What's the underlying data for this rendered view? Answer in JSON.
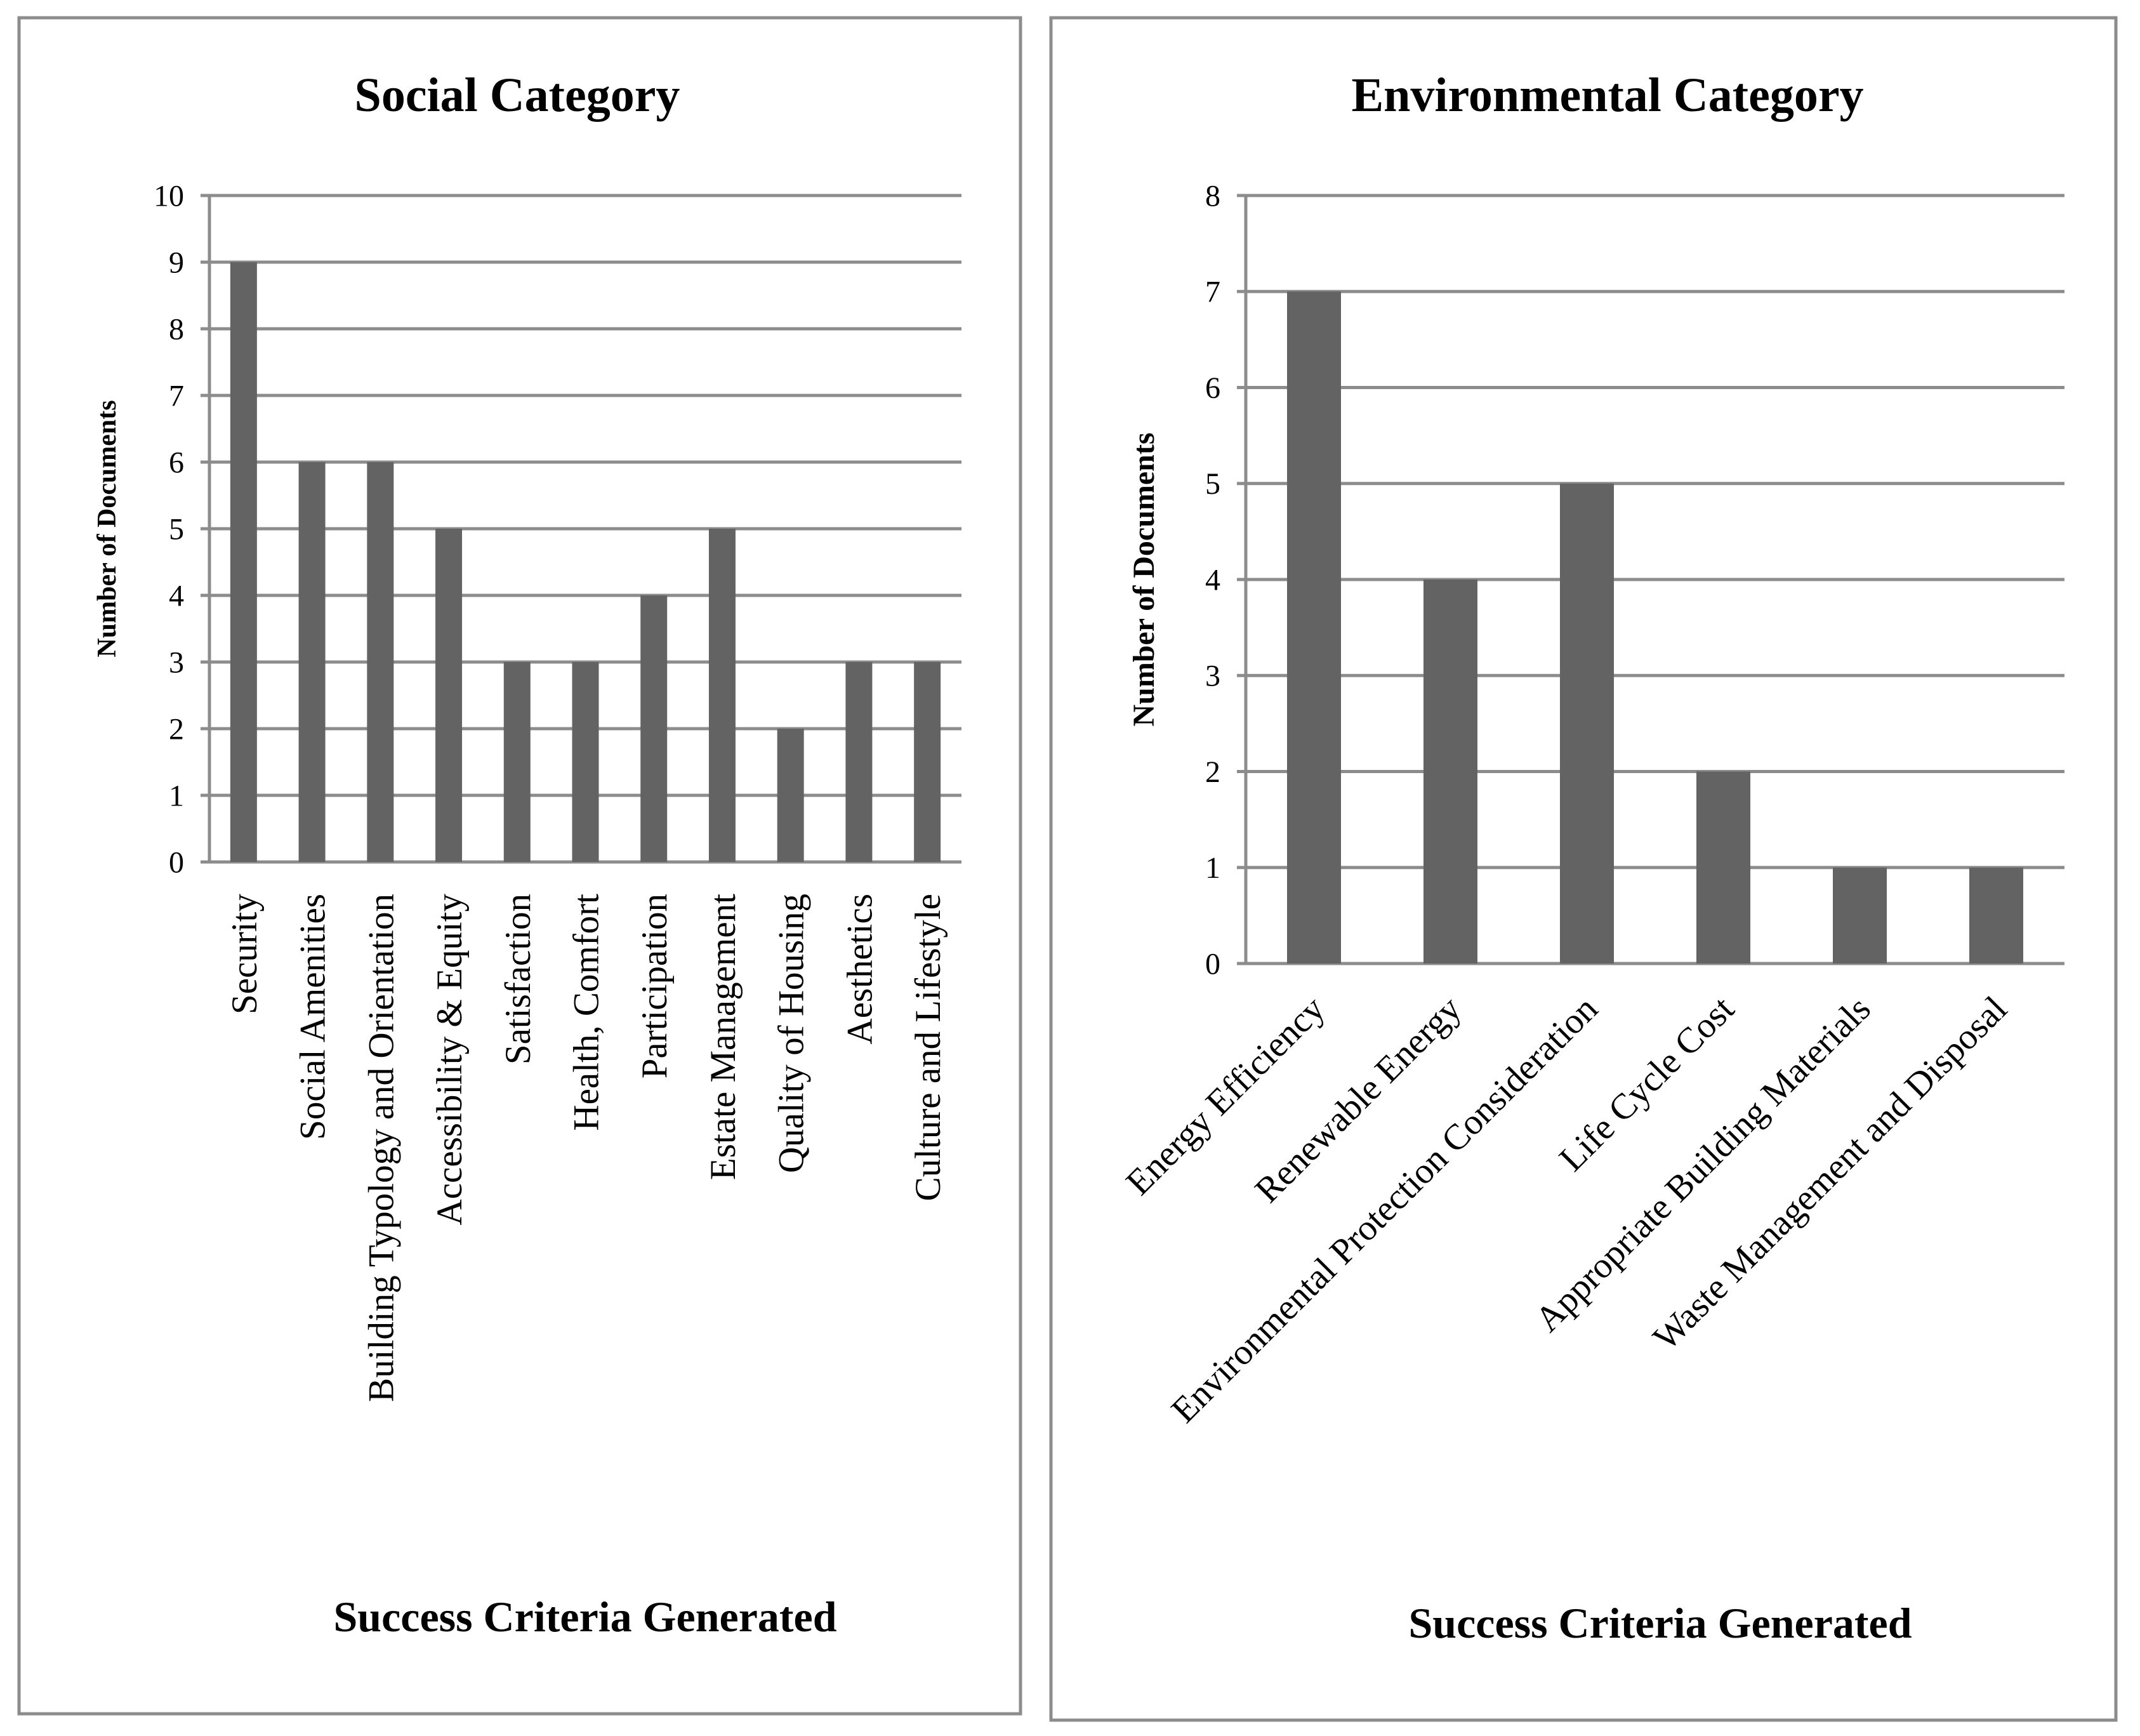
{
  "chart_data": [
    {
      "type": "bar",
      "title": "Social Category",
      "xlabel": "Success Criteria Generated",
      "ylabel": "Number of Documents",
      "ylim": [
        0,
        10
      ],
      "yticks": [
        "0",
        "1",
        "2",
        "3",
        "4",
        "5",
        "6",
        "7",
        "8",
        "9",
        "10"
      ],
      "categories": [
        "Security",
        "Social Amenities",
        "Building Typology and Orientation",
        "Accessibility & Equity",
        "Satisfaction",
        "Health, Comfort",
        "Participation",
        "Estate Management",
        "Quality of Housing",
        "Aesthetics",
        "Culture and Lifestyle"
      ],
      "values": [
        9,
        6,
        6,
        5,
        3,
        3,
        4,
        5,
        2,
        3,
        3
      ],
      "bar_color": "#636363",
      "grid": true
    },
    {
      "type": "bar",
      "title": "Environmental Category",
      "xlabel": "Success Criteria Generated",
      "ylabel": "Number of Documents",
      "ylim": [
        0,
        8
      ],
      "yticks": [
        "0",
        "1",
        "2",
        "3",
        "4",
        "5",
        "6",
        "7",
        "8"
      ],
      "categories": [
        "Energy Efficiency",
        "Renewable Energy",
        "Environmental Protection Consideration",
        "Life Cycle Cost",
        "Appropriate Building Materials",
        "Waste Management and Disposal"
      ],
      "values": [
        7,
        4,
        5,
        2,
        1,
        1
      ],
      "bar_color": "#636363",
      "grid": true
    }
  ]
}
